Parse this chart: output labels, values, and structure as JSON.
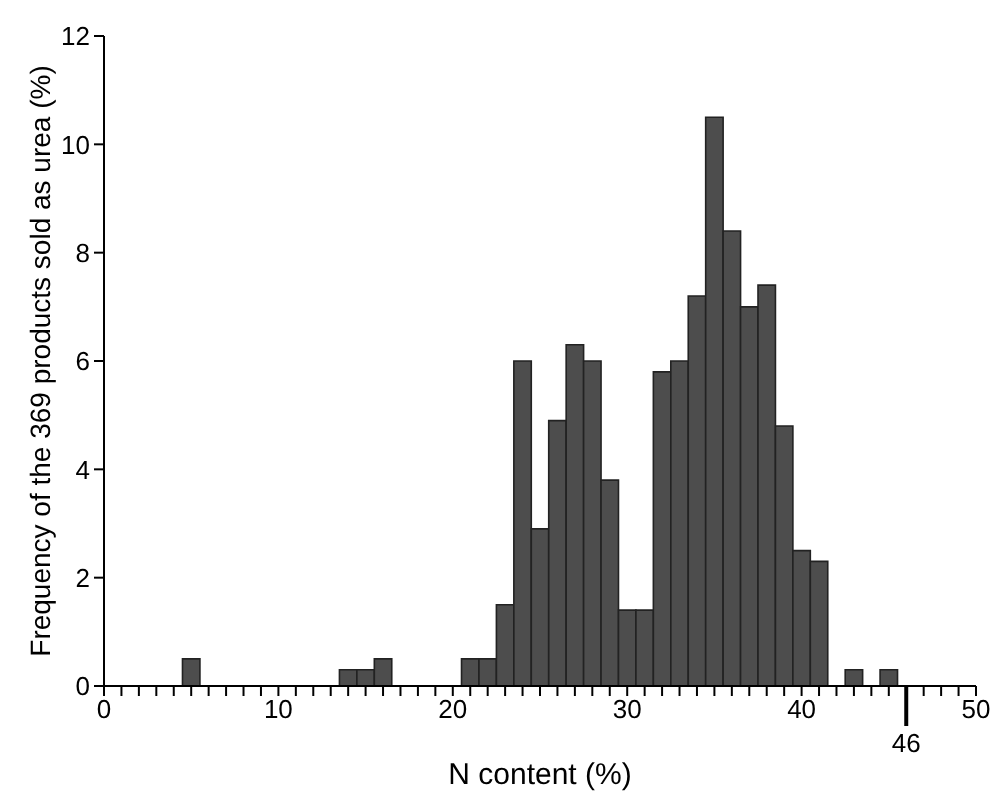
{
  "chart_data": {
    "type": "histogram",
    "xlabel": "N content (%)",
    "ylabel": "Frequency of the 369 products sold as urea (%)",
    "bins": [
      4.5,
      5.5,
      6.5,
      7.5,
      8.5,
      9.5,
      10.5,
      11.5,
      12.5,
      13.5,
      14.5,
      15.5,
      16.5,
      17.5,
      18.5,
      19.5,
      20.5,
      21.5,
      22.5,
      23.5,
      24.5,
      25.5,
      26.5,
      27.5,
      28.5,
      29.5,
      30.5,
      31.5,
      32.5,
      33.5,
      34.5,
      35.5,
      36.5,
      37.5,
      38.5,
      39.5,
      40.5,
      41.5,
      42.5,
      43.5,
      44.5,
      45.5
    ],
    "values": [
      0.5,
      0,
      0,
      0,
      0,
      0,
      0,
      0,
      0,
      0.3,
      0.3,
      0.5,
      0,
      0,
      0,
      0,
      0.5,
      0.5,
      1.5,
      6.0,
      2.9,
      4.9,
      6.3,
      6.0,
      3.8,
      1.4,
      1.4,
      5.8,
      6.0,
      7.2,
      10.5,
      8.4,
      7.0,
      7.4,
      4.8,
      2.5,
      2.3,
      0,
      0.3,
      0,
      0.3
    ],
    "color": "#4d4d4d",
    "xlim": [
      0,
      50
    ],
    "xticks": [
      0,
      {
        "value": 1,
        "label": null
      },
      {
        "value": 2,
        "label": null
      },
      {
        "value": 3,
        "label": null
      },
      {
        "value": 4,
        "label": null
      },
      {
        "value": 5,
        "label": null
      },
      {
        "value": 6,
        "label": null
      },
      {
        "value": 7,
        "label": null
      },
      {
        "value": 8,
        "label": null
      },
      {
        "value": 9,
        "label": null
      },
      10,
      {
        "value": 11,
        "label": null
      },
      {
        "value": 12,
        "label": null
      },
      {
        "value": 13,
        "label": null
      },
      {
        "value": 14,
        "label": null
      },
      {
        "value": 15,
        "label": null
      },
      {
        "value": 16,
        "label": null
      },
      {
        "value": 17,
        "label": null
      },
      {
        "value": 18,
        "label": null
      },
      {
        "value": 19,
        "label": null
      },
      20,
      {
        "value": 21,
        "label": null
      },
      {
        "value": 22,
        "label": null
      },
      {
        "value": 23,
        "label": null
      },
      {
        "value": 24,
        "label": null
      },
      {
        "value": 25,
        "label": null
      },
      {
        "value": 26,
        "label": null
      },
      {
        "value": 27,
        "label": null
      },
      {
        "value": 28,
        "label": null
      },
      {
        "value": 29,
        "label": null
      },
      30,
      {
        "value": 31,
        "label": null
      },
      {
        "value": 32,
        "label": null
      },
      {
        "value": 33,
        "label": null
      },
      {
        "value": 34,
        "label": null
      },
      {
        "value": 35,
        "label": null
      },
      {
        "value": 36,
        "label": null
      },
      {
        "value": 37,
        "label": null
      },
      {
        "value": 38,
        "label": null
      },
      {
        "value": 39,
        "label": null
      },
      40,
      {
        "value": 41,
        "label": null
      },
      {
        "value": 42,
        "label": null
      },
      {
        "value": 43,
        "label": null
      },
      {
        "value": 44,
        "label": null
      },
      {
        "value": 45,
        "label": null
      },
      {
        "value": 46,
        "label": null
      },
      {
        "value": 47,
        "label": null
      },
      {
        "value": 48,
        "label": null
      },
      {
        "value": 49,
        "label": null
      },
      50
    ],
    "ylim": [
      0,
      12
    ],
    "yticks": [
      0,
      2,
      4,
      6,
      8,
      10,
      12
    ],
    "ref_lines": [
      {
        "axis": "x",
        "value": 46,
        "label": "46"
      }
    ],
    "grid": false
  }
}
